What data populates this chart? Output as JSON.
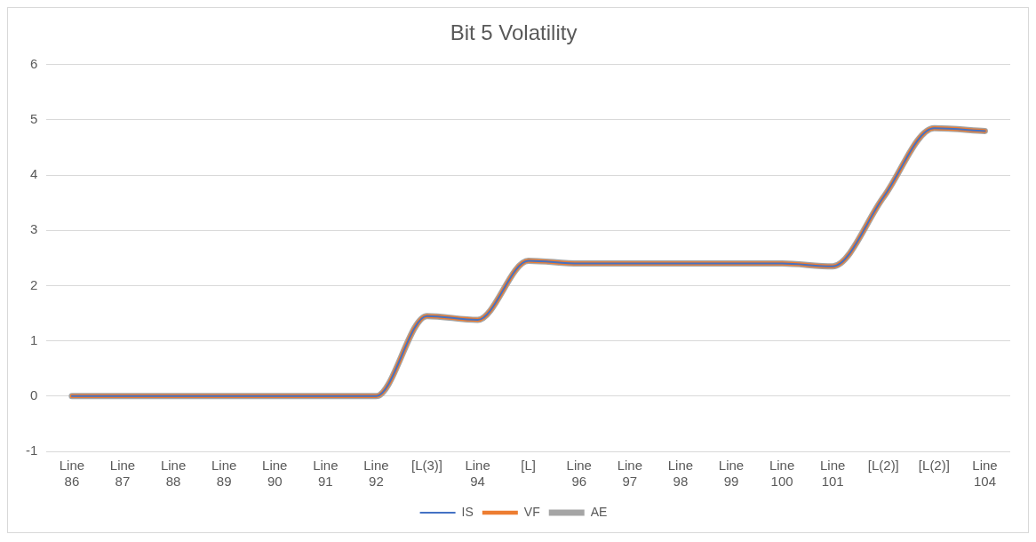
{
  "chart_data": {
    "type": "line",
    "title": "Bit 5 Volatility",
    "categories": [
      "Line 86",
      "Line 87",
      "Line 88",
      "Line 89",
      "Line 90",
      "Line 91",
      "Line 92",
      "[L(3)]",
      "Line 94",
      "[L]",
      "Line 96",
      "Line 97",
      "Line 98",
      "Line 99",
      "Line 100",
      "Line 101",
      "[L(2)]",
      "[L(2)]",
      "Line 104"
    ],
    "series": [
      {
        "name": "IS",
        "color": "#4472c4",
        "values": [
          0,
          0,
          0,
          0,
          0,
          0,
          0,
          1.45,
          1.38,
          2.45,
          2.4,
          2.4,
          2.4,
          2.4,
          2.4,
          2.35,
          3.6,
          4.85,
          4.8
        ]
      },
      {
        "name": "VF",
        "color": "#ed7d31",
        "values": [
          0,
          0,
          0,
          0,
          0,
          0,
          0,
          1.45,
          1.38,
          2.45,
          2.4,
          2.4,
          2.4,
          2.4,
          2.4,
          2.35,
          3.6,
          4.85,
          4.8
        ]
      },
      {
        "name": "AE",
        "color": "#a5a5a5",
        "values": [
          0,
          0,
          0,
          0,
          0,
          0,
          0,
          1.45,
          1.38,
          2.45,
          2.4,
          2.4,
          2.4,
          2.4,
          2.4,
          2.35,
          3.6,
          4.85,
          4.8
        ]
      }
    ],
    "ylim": [
      -1,
      6
    ],
    "yticks": [
      -1,
      0,
      1,
      2,
      3,
      4,
      5,
      6
    ],
    "grid": "y",
    "legend": "bottom",
    "marker": "none",
    "line_style": "solid"
  }
}
